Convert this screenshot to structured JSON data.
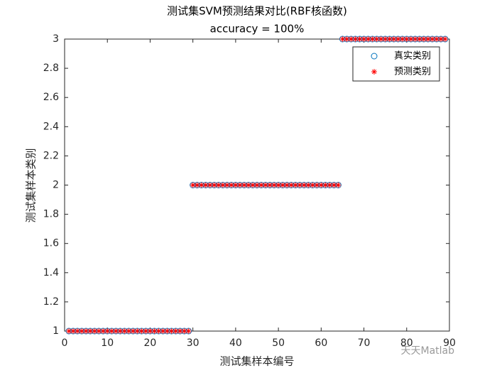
{
  "chart_data": {
    "type": "scatter",
    "title": "测试集SVM预测结果对比(RBF核函数)",
    "subtitle": "accuracy = 100%",
    "x_label": "测试集样本编号",
    "y_label": "测试集样本类别",
    "watermark": "天天Matlab",
    "legend": "northeast",
    "x": [
      1,
      2,
      3,
      4,
      5,
      6,
      7,
      8,
      9,
      10,
      11,
      12,
      13,
      14,
      15,
      16,
      17,
      18,
      19,
      20,
      21,
      22,
      23,
      24,
      25,
      26,
      27,
      28,
      29,
      30,
      31,
      32,
      33,
      34,
      35,
      36,
      37,
      38,
      39,
      40,
      41,
      42,
      43,
      44,
      45,
      46,
      47,
      48,
      49,
      50,
      51,
      52,
      53,
      54,
      55,
      56,
      57,
      58,
      59,
      60,
      61,
      62,
      63,
      64,
      65,
      66,
      67,
      68,
      69,
      70,
      71,
      72,
      73,
      74,
      75,
      76,
      77,
      78,
      79,
      80,
      81,
      82,
      83,
      84,
      85,
      86,
      87,
      88,
      89
    ],
    "series": [
      {
        "name": "真实类别",
        "color": "#0072bd",
        "marker": "circle",
        "values": [
          1,
          1,
          1,
          1,
          1,
          1,
          1,
          1,
          1,
          1,
          1,
          1,
          1,
          1,
          1,
          1,
          1,
          1,
          1,
          1,
          1,
          1,
          1,
          1,
          1,
          1,
          1,
          1,
          1,
          2,
          2,
          2,
          2,
          2,
          2,
          2,
          2,
          2,
          2,
          2,
          2,
          2,
          2,
          2,
          2,
          2,
          2,
          2,
          2,
          2,
          2,
          2,
          2,
          2,
          2,
          2,
          2,
          2,
          2,
          2,
          2,
          2,
          2,
          2,
          3,
          3,
          3,
          3,
          3,
          3,
          3,
          3,
          3,
          3,
          3,
          3,
          3,
          3,
          3,
          3,
          3,
          3,
          3,
          3,
          3,
          3,
          3,
          3,
          3
        ]
      },
      {
        "name": "预测类别",
        "color": "#ff0000",
        "marker": "asterisk",
        "values": [
          1,
          1,
          1,
          1,
          1,
          1,
          1,
          1,
          1,
          1,
          1,
          1,
          1,
          1,
          1,
          1,
          1,
          1,
          1,
          1,
          1,
          1,
          1,
          1,
          1,
          1,
          1,
          1,
          1,
          2,
          2,
          2,
          2,
          2,
          2,
          2,
          2,
          2,
          2,
          2,
          2,
          2,
          2,
          2,
          2,
          2,
          2,
          2,
          2,
          2,
          2,
          2,
          2,
          2,
          2,
          2,
          2,
          2,
          2,
          2,
          2,
          2,
          2,
          2,
          3,
          3,
          3,
          3,
          3,
          3,
          3,
          3,
          3,
          3,
          3,
          3,
          3,
          3,
          3,
          3,
          3,
          3,
          3,
          3,
          3,
          3,
          3,
          3,
          3
        ]
      }
    ],
    "xlim": [
      0,
      90
    ],
    "xticks": [
      0,
      10,
      20,
      30,
      40,
      50,
      60,
      70,
      80,
      90
    ],
    "ylim": [
      1,
      3
    ],
    "yticks": [
      1,
      1.2,
      1.4,
      1.6,
      1.8,
      2,
      2.2,
      2.4,
      2.6,
      2.8,
      3
    ]
  }
}
